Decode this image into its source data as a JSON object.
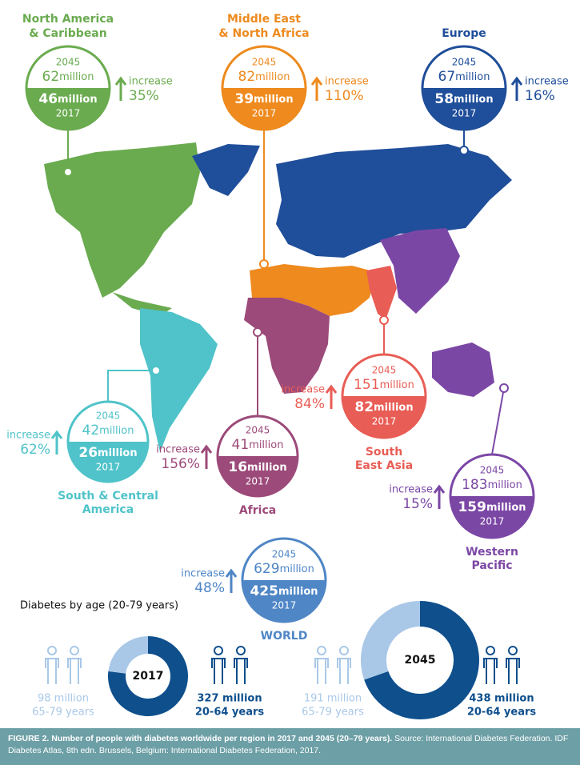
{
  "regions": [
    {
      "name": [
        "North America",
        "& Caribbean"
      ],
      "color": "#6aab4f",
      "year_2045": "2045",
      "value_2045": "62",
      "unit_2045": "million",
      "value_2017": "46",
      "unit_2017": "million",
      "year_2017": "2017",
      "increase": "increase",
      "percent": "35%"
    },
    {
      "name": [
        "Middle East",
        "& North Africa"
      ],
      "color": "#ee8a1e",
      "year_2045": "2045",
      "value_2045": "82",
      "unit_2045": "million",
      "value_2017": "39",
      "unit_2017": "million",
      "year_2017": "2017",
      "increase": "increase",
      "percent": "110%"
    },
    {
      "name": [
        "Europe"
      ],
      "color": "#1f4e9a",
      "year_2045": "2045",
      "value_2045": "67",
      "unit_2045": "million",
      "value_2017": "58",
      "unit_2017": "million",
      "year_2017": "2017",
      "increase": "increase",
      "percent": "16%"
    },
    {
      "name": [
        "South & Central",
        "America"
      ],
      "color": "#4fc3c9",
      "year_2045": "2045",
      "value_2045": "42",
      "unit_2045": "million",
      "value_2017": "26",
      "unit_2017": "million",
      "year_2017": "2017",
      "increase": "increase",
      "percent": "62%"
    },
    {
      "name": [
        "Africa"
      ],
      "color": "#9c4a7a",
      "year_2045": "2045",
      "value_2045": "41",
      "unit_2045": "million",
      "value_2017": "16",
      "unit_2017": "million",
      "year_2017": "2017",
      "increase": "increase",
      "percent": "156%"
    },
    {
      "name": [
        "South",
        "East Asia"
      ],
      "color": "#e85d55",
      "year_2045": "2045",
      "value_2045": "151",
      "unit_2045": "million",
      "value_2017": "82",
      "unit_2017": "million",
      "year_2017": "2017",
      "increase": "increase",
      "percent": "84%"
    },
    {
      "name": [
        "Western",
        "Pacific"
      ],
      "color": "#7b47a5",
      "year_2045": "2045",
      "value_2045": "183",
      "unit_2045": "million",
      "value_2017": "159",
      "unit_2017": "million",
      "year_2017": "2017",
      "increase": "increase",
      "percent": "15%"
    },
    {
      "name": [
        "WORLD"
      ],
      "color": "#4f86c6",
      "year_2045": "2045",
      "value_2045": "629",
      "unit_2045": "million",
      "value_2017": "425",
      "unit_2017": "million",
      "year_2017": "2017",
      "increase": "increase",
      "percent": "48%"
    }
  ],
  "age_title": "Diabetes by age (20-79 years)",
  "donuts": [
    {
      "center": "2017",
      "values": [
        98,
        327
      ],
      "colors": [
        "#a9c8e8",
        "#0e4f8c"
      ],
      "labels": [
        [
          "98 million",
          "65-79 years"
        ],
        [
          "327 million",
          "20-64 years"
        ]
      ]
    },
    {
      "center": "2045",
      "values": [
        191,
        438
      ],
      "colors": [
        "#a9c8e8",
        "#0e4f8c"
      ],
      "labels": [
        [
          "191 million",
          "65-79 years"
        ],
        [
          "438 million",
          "20-64 years"
        ]
      ]
    }
  ],
  "caption": {
    "bold": "FIGURE 2. Number of people with diabetes worldwide per region in 2017 and 2045 (20–79 years).",
    "text": "Source: International Diabetes Federation. IDF Diabetes Atlas, 8th edn. Brussels, Belgium: International Diabetes Federation, 2017."
  }
}
